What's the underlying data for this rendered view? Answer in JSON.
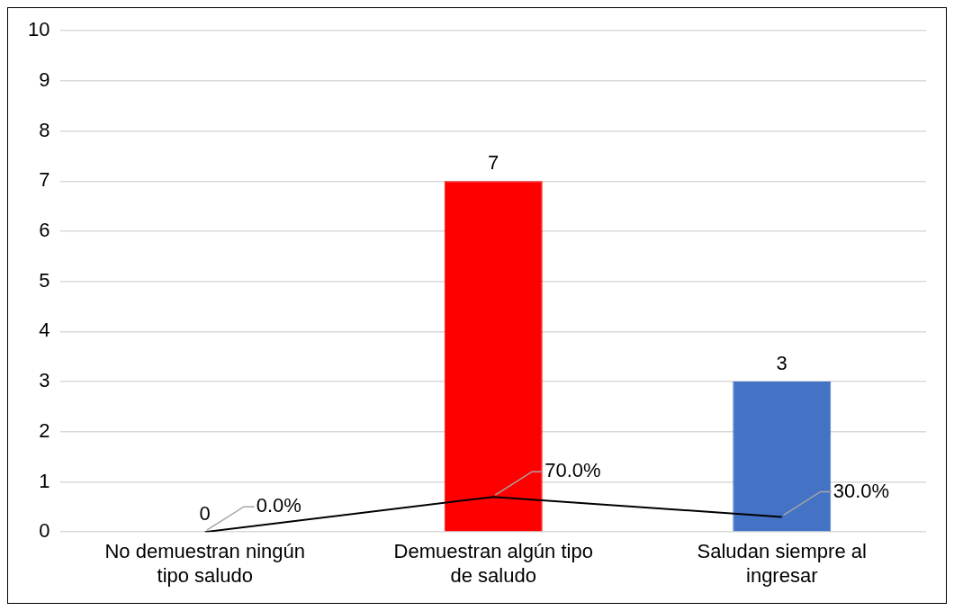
{
  "chart_data": {
    "type": "bar",
    "categories": [
      "No demuestran ningún tipo saludo",
      "Demuestran algún tipo de saludo",
      "Saludan siempre al ingresar"
    ],
    "series": [
      {
        "colors": [
          "#ff0000",
          "#ff0000",
          "#4472c4"
        ],
        "values": [
          0,
          7,
          3
        ],
        "value_labels": [
          "0",
          "7",
          "3"
        ]
      },
      {
        "type": "line",
        "color": "#000000",
        "values": [
          0,
          0.7,
          0.3
        ],
        "value_labels": [
          "0.0%",
          "70.0%",
          "30.0%"
        ]
      }
    ],
    "ylim": [
      0,
      10
    ],
    "yticks": [
      0,
      1,
      2,
      3,
      4,
      5,
      6,
      7,
      8,
      9,
      10
    ],
    "grid": "y",
    "legend": false,
    "marker": "none"
  }
}
